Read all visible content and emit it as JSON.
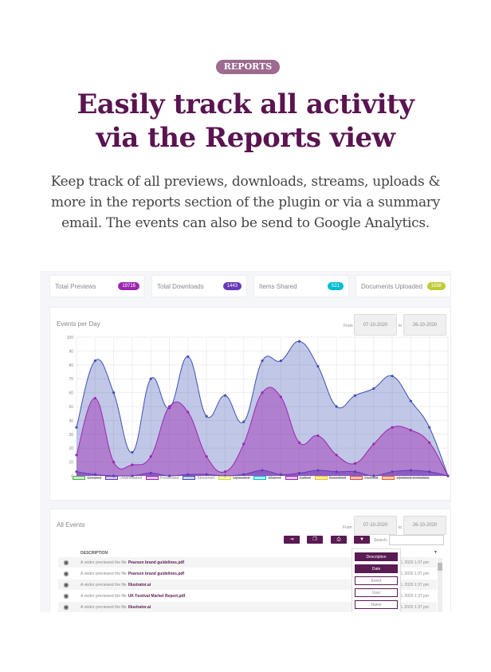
{
  "badge": "REPORTS",
  "headline": [
    "Easily track all activity",
    "via the Reports view"
  ],
  "lead": "Keep track of all previews, downloads, streams, uploads & more in the reports section of the plugin or via a summary email. The events can also be send to Google Analytics.",
  "stats": [
    {
      "label": "Total Previews",
      "value": "19716",
      "color": "#9c27b0"
    },
    {
      "label": "Total Downloads",
      "value": "1443",
      "color": "#673ab7"
    },
    {
      "label": "Items Shared",
      "value": "521",
      "color": "#00bcd4"
    },
    {
      "label": "Documents Uploaded",
      "value": "1898",
      "color": "#c0ca33"
    }
  ],
  "events_chart": {
    "title": "Events per Day",
    "from_label": "From",
    "from": "07-10-2020",
    "to_label": "to",
    "to": "26-10-2020"
  },
  "chart_data": {
    "type": "area",
    "smooth": true,
    "ylim": [
      0,
      100
    ],
    "yticks": [
      0,
      10,
      20,
      30,
      40,
      50,
      60,
      70,
      80,
      90,
      100
    ],
    "grid": true,
    "legend": "bottom",
    "categories": [
      "Oct 7",
      "Oct 8",
      "Oct 9",
      "Oct 10",
      "Oct 11",
      "Oct 12",
      "Oct 13",
      "Oct 14",
      "Oct 15",
      "Oct 16",
      "Oct 17",
      "Oct 18",
      "Oct 19",
      "Oct 20",
      "Oct 21",
      "Oct 22",
      "Oct 23",
      "Oct 24",
      "Oct 25",
      "Oct 26",
      "Oct 27"
    ],
    "series": [
      {
        "name": "Streamed",
        "color": "#3f51b5",
        "values": [
          35,
          83,
          60,
          17,
          70,
          49,
          86,
          43,
          58,
          39,
          83,
          83,
          97,
          79,
          50,
          58,
          63,
          72,
          54,
          35,
          0
        ]
      },
      {
        "name": "Previewed",
        "color": "#9c27b0",
        "values": [
          15,
          56,
          10,
          8,
          14,
          50,
          46,
          14,
          3,
          23,
          60,
          57,
          24,
          29,
          15,
          9,
          23,
          35,
          33,
          24,
          0
        ]
      },
      {
        "name": "Downloaded",
        "color": "#673ab7",
        "values": [
          3,
          1,
          0,
          0,
          2,
          0,
          1,
          1,
          0,
          1,
          4,
          1,
          2,
          4,
          3,
          3,
          0,
          3,
          4,
          3,
          0
        ]
      }
    ],
    "legend_items": [
      {
        "name": "Created",
        "color": "#4caf50",
        "hidden": true
      },
      {
        "name": "Downloaded",
        "color": "#673ab7",
        "hidden": false
      },
      {
        "name": "Previewed",
        "color": "#9c27b0",
        "hidden": false
      },
      {
        "name": "Streamed",
        "color": "#3f51b5",
        "hidden": false
      },
      {
        "name": "Uploaded",
        "color": "#cddc39",
        "hidden": true
      },
      {
        "name": "Shared",
        "color": "#00bcd4",
        "hidden": true
      },
      {
        "name": "Edited",
        "color": "#9c27b0",
        "hidden": true
      },
      {
        "name": "Searched",
        "color": "#ffc107",
        "hidden": true
      },
      {
        "name": "Deleted",
        "color": "#f44336",
        "hidden": true
      },
      {
        "name": "Updated metadata",
        "color": "#ff5722",
        "hidden": true
      }
    ]
  },
  "all_events": {
    "title": "All Events",
    "from_label": "From",
    "from": "07-10-2020",
    "to_label": "to",
    "to": "26-10-2020",
    "search_label": "Search:",
    "search_value": "",
    "col_header": "DESCRIPTION",
    "rows": [
      {
        "text": "A visitor previewed the file",
        "file": "Pearson brand guidelines.pdf",
        "date": "26, 2020 1:37 pm"
      },
      {
        "text": "A visitor previewed the file",
        "file": "Pearson brand guidelines.pdf",
        "date": "26, 2020 1:37 pm"
      },
      {
        "text": "A visitor previewed the file",
        "file": "Illustrator.ai",
        "date": "26, 2020 1:37 pm"
      },
      {
        "text": "A visitor previewed the file",
        "file": "UK Festival Market Report.pdf",
        "date": "26, 2020 1:37 pm"
      },
      {
        "text": "A visitor previewed the file",
        "file": "Illustrator.ai",
        "date": "26, 2020 1:37 pm"
      }
    ],
    "columns": [
      {
        "label": "Description",
        "on": true
      },
      {
        "label": "Date",
        "on": true
      },
      {
        "label": "Event",
        "on": false
      },
      {
        "label": "User",
        "on": false
      },
      {
        "label": "Name",
        "on": false
      },
      {
        "label": "Location",
        "on": false
      }
    ]
  }
}
